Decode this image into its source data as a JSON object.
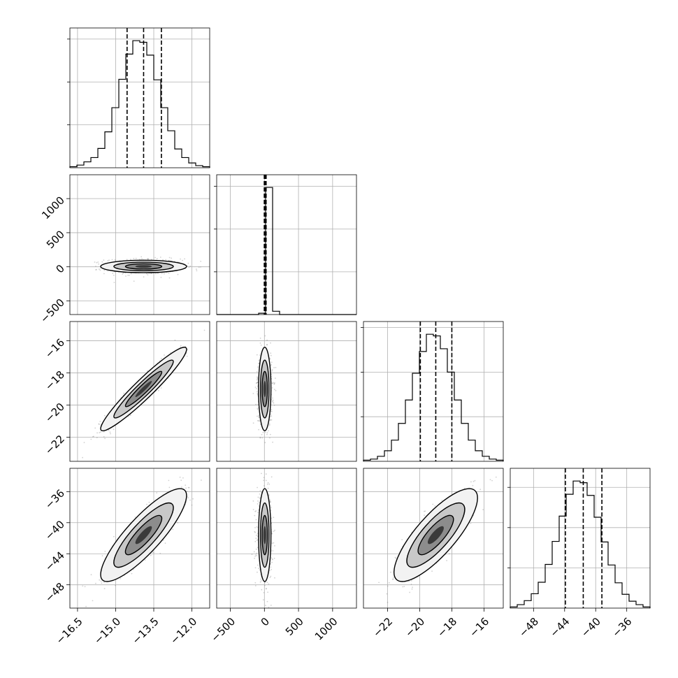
{
  "chart_data": {
    "type": "corner",
    "params": [
      {
        "name": "",
        "range": [
          -16.8,
          -11.3
        ],
        "ticks": [
          -16.5,
          -15.0,
          -13.5,
          -12.0
        ],
        "tick_labels": [
          "−16.5",
          "−15.0",
          "−13.5",
          "−12.0"
        ],
        "mean": -13.9,
        "std": 0.65,
        "quantiles": [
          -14.55,
          -13.9,
          -13.2
        ]
      },
      {
        "name": "",
        "range": [
          -700,
          1350
        ],
        "ticks": [
          -500,
          0,
          500,
          1000
        ],
        "tick_labels": [
          "−500",
          "0",
          "500",
          "1000"
        ],
        "mean": 5,
        "std": 35,
        "quantiles": [
          -2,
          10,
          25
        ]
      },
      {
        "name": "",
        "range": [
          -23.5,
          -14.8
        ],
        "ticks": [
          -22,
          -20,
          -18,
          -16
        ],
        "tick_labels": [
          "−22",
          "−20",
          "−18",
          "−16"
        ],
        "mean": -19.0,
        "std": 1.0,
        "quantiles": [
          -19.96,
          -19.0,
          -18.0
        ]
      },
      {
        "name": "",
        "range": [
          -51,
          -33
        ],
        "ticks": [
          -48,
          -44,
          -40,
          -36
        ],
        "tick_labels": [
          "−48",
          "−44",
          "−40",
          "−36"
        ],
        "mean": -41.6,
        "std": 2.3,
        "quantiles": [
          -43.9,
          -41.6,
          -39.2
        ]
      }
    ],
    "pairs": [
      {
        "row": 1,
        "col": 0,
        "correlation": 0.0
      },
      {
        "row": 2,
        "col": 0,
        "correlation": 0.95
      },
      {
        "row": 2,
        "col": 1,
        "correlation": 0.0
      },
      {
        "row": 3,
        "col": 0,
        "correlation": 0.85
      },
      {
        "row": 3,
        "col": 1,
        "correlation": 0.0
      },
      {
        "row": 3,
        "col": 2,
        "correlation": 0.8
      }
    ],
    "histograms": [
      {
        "param": 0,
        "bins": [
          -16.8,
          -16.525,
          -16.25,
          -15.975,
          -15.7,
          -15.425,
          -15.15,
          -14.875,
          -14.6,
          -14.325,
          -14.05,
          -13.775,
          -13.5,
          -13.225,
          -12.95,
          -12.675,
          -12.4,
          -12.125,
          -11.85,
          -11.575,
          -11.3
        ],
        "counts": [
          2,
          5,
          11,
          19,
          36,
          67,
          112,
          165,
          212,
          237,
          234,
          210,
          164,
          112,
          69,
          35,
          19,
          9,
          4,
          2
        ]
      },
      {
        "param": 1,
        "bins": [
          -700,
          -597.5,
          -495,
          -392.5,
          -290,
          -187.5,
          -85,
          17.5,
          120,
          222.5,
          325,
          427.5,
          530,
          632.5,
          735,
          837.5,
          940,
          1042.5,
          1145,
          1247.5,
          1350
        ],
        "counts": [
          0,
          0,
          0,
          0,
          0,
          0,
          12,
          1160,
          30,
          0,
          0,
          0,
          0,
          0,
          0,
          0,
          0,
          0,
          0,
          0
        ]
      },
      {
        "param": 2,
        "bins": [
          -23.5,
          -23.065,
          -22.63,
          -22.195,
          -21.76,
          -21.325,
          -20.89,
          -20.455,
          -20.02,
          -19.585,
          -19.15,
          -18.715,
          -18.28,
          -17.845,
          -17.41,
          -16.975,
          -16.54,
          -16.105,
          -15.67,
          -15.235,
          -14.8
        ],
        "counts": [
          2,
          4,
          9,
          19,
          38,
          68,
          110,
          158,
          197,
          228,
          225,
          202,
          160,
          110,
          68,
          38,
          19,
          9,
          4,
          2
        ]
      },
      {
        "param": 3,
        "bins": [
          -51,
          -50.1,
          -49.2,
          -48.3,
          -47.4,
          -46.5,
          -45.6,
          -44.7,
          -43.8,
          -42.9,
          -42,
          -41.1,
          -40.2,
          -39.3,
          -38.4,
          -37.5,
          -36.6,
          -35.7,
          -34.8,
          -33.9,
          -33
        ],
        "counts": [
          2,
          6,
          13,
          25,
          45,
          76,
          116,
          160,
          198,
          221,
          218,
          196,
          158,
          115,
          75,
          44,
          24,
          12,
          6,
          2
        ]
      }
    ],
    "grid": true,
    "contour_levels": [
      0.5,
      0.86,
      0.99
    ]
  }
}
